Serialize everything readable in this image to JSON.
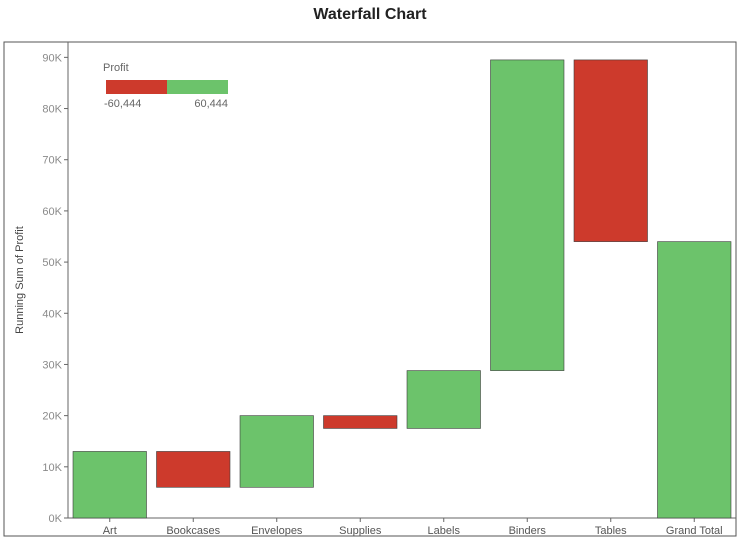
{
  "colors": {
    "positive": "#6cc36b",
    "negative": "#cd3a2c",
    "axis": "#666666",
    "frame": "#555555"
  },
  "chart_data": {
    "type": "bar",
    "subtype": "waterfall",
    "title": "Waterfall Chart",
    "ylabel": "Running Sum of Profit",
    "xlabel": "",
    "ylim": [
      0,
      93000
    ],
    "y_ticks": [
      0,
      10000,
      20000,
      30000,
      40000,
      50000,
      60000,
      70000,
      80000,
      90000
    ],
    "y_tick_labels": [
      "0K",
      "10K",
      "20K",
      "30K",
      "40K",
      "50K",
      "60K",
      "70K",
      "80K",
      "90K"
    ],
    "grid": false,
    "categories": [
      "Art",
      "Bookcases",
      "Envelopes",
      "Supplies",
      "Labels",
      "Binders",
      "Tables",
      "Grand Total"
    ],
    "bars": [
      {
        "category": "Art",
        "start": 0,
        "end": 13000,
        "profit": 13000
      },
      {
        "category": "Bookcases",
        "start": 13000,
        "end": 6000,
        "profit": -7000
      },
      {
        "category": "Envelopes",
        "start": 6000,
        "end": 20000,
        "profit": 14000
      },
      {
        "category": "Supplies",
        "start": 20000,
        "end": 17500,
        "profit": -2500
      },
      {
        "category": "Labels",
        "start": 17500,
        "end": 28800,
        "profit": 11300
      },
      {
        "category": "Binders",
        "start": 28800,
        "end": 89500,
        "profit": 60700
      },
      {
        "category": "Tables",
        "start": 89500,
        "end": 54000,
        "profit": -35500
      },
      {
        "category": "Grand Total",
        "start": 0,
        "end": 54000,
        "profit": 54000
      }
    ],
    "legend": {
      "title": "Profit",
      "min_label": "-60,444",
      "max_label": "60,444",
      "placement": "top-left"
    }
  }
}
